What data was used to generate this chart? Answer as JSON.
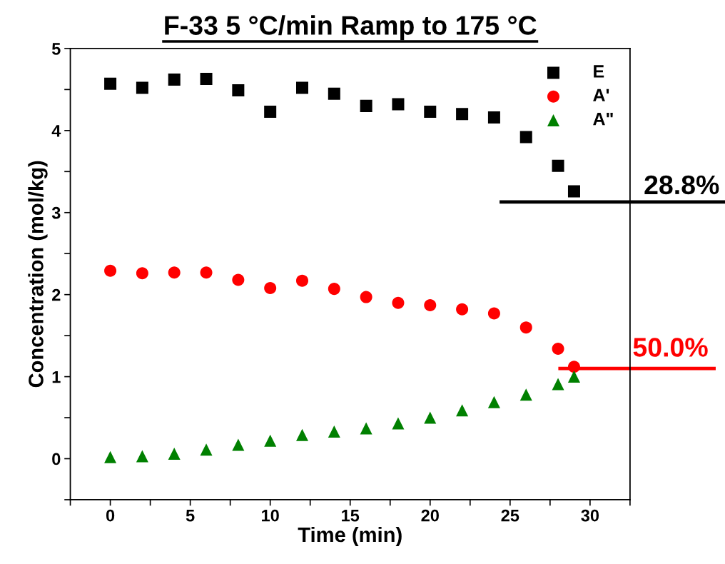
{
  "chart_data": {
    "type": "scatter",
    "title": "F-33 5 °C/min Ramp to 175 °C",
    "xlabel": "Time (min)",
    "ylabel": "Concentration (mol/kg)",
    "x": [
      0,
      2,
      4,
      6,
      8,
      10,
      12,
      14,
      16,
      18,
      20,
      22,
      24,
      26,
      28,
      29
    ],
    "series": [
      {
        "name": "E",
        "color": "#000000",
        "marker": "square",
        "values": [
          4.57,
          4.52,
          4.62,
          4.63,
          4.49,
          4.23,
          4.52,
          4.45,
          4.3,
          4.32,
          4.23,
          4.2,
          4.16,
          3.92,
          3.57,
          3.26
        ]
      },
      {
        "name": "A'",
        "color": "#ff0000",
        "marker": "circle",
        "values": [
          2.29,
          2.26,
          2.27,
          2.27,
          2.18,
          2.08,
          2.17,
          2.07,
          1.97,
          1.9,
          1.87,
          1.82,
          1.77,
          1.6,
          1.34,
          1.12
        ]
      },
      {
        "name": "A\"",
        "color": "#008000",
        "marker": "triangle",
        "values": [
          0.02,
          0.03,
          0.06,
          0.11,
          0.17,
          0.22,
          0.29,
          0.33,
          0.37,
          0.43,
          0.5,
          0.59,
          0.69,
          0.78,
          0.91,
          1.0
        ]
      }
    ],
    "ref_lines": [
      {
        "axis": "y",
        "value": 3.13,
        "color": "#000000"
      },
      {
        "axis": "y",
        "value": 1.1,
        "color": "#ff0000"
      }
    ],
    "annotations": [
      "28.8%",
      "50.0%"
    ],
    "xlim": [
      -2.5,
      32.5
    ],
    "ylim": [
      -0.5,
      5
    ],
    "xticks": [
      {
        "value": -2.5,
        "label": null
      },
      0,
      {
        "value": 2.5,
        "label": null
      },
      5,
      {
        "value": 7.5,
        "label": null
      },
      10,
      {
        "value": 12.5,
        "label": null
      },
      15,
      {
        "value": 17.5,
        "label": null
      },
      20,
      {
        "value": 22.5,
        "label": null
      },
      25,
      {
        "value": 27.5,
        "label": null
      },
      30,
      {
        "value": 32.5,
        "label": null
      }
    ],
    "yticks": [
      {
        "value": -0.5,
        "label": null
      },
      0,
      {
        "value": 0.5,
        "label": null
      },
      1,
      {
        "value": 1.5,
        "label": null
      },
      2,
      {
        "value": 2.5,
        "label": null
      },
      3,
      {
        "value": 3.5,
        "label": null
      },
      4,
      {
        "value": 4.5,
        "label": null
      },
      5
    ],
    "grid": false,
    "legend": "top right"
  }
}
